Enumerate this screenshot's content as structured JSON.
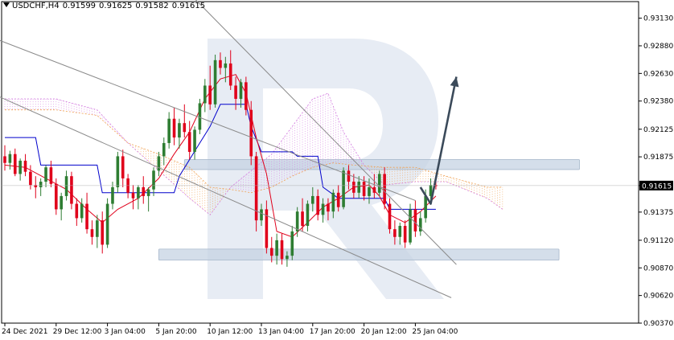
{
  "header": {
    "symbol": "USDCHF,H4",
    "open": "0.91599",
    "high": "0.91625",
    "low": "0.91582",
    "close": "0.91615"
  },
  "colors": {
    "bull": "#2e7d32",
    "bear": "#e0001b",
    "tenkan": "#e0001b",
    "kijun": "#0000cc",
    "kumo_up": "#d47fe0",
    "kumo_down": "#f0a050",
    "channel": "#8a8a8a",
    "zone": "#c5d3e3",
    "arrow": "#3b4a5a",
    "watermark": "#e3e9f2",
    "price_tag": "#000000"
  },
  "chart_data": {
    "type": "candlestick",
    "title": "USDCHF,H4",
    "ylim": [
      0.9037,
      0.9328
    ],
    "y_ticks": [
      "0.93130",
      "0.92880",
      "0.92630",
      "0.92380",
      "0.92125",
      "0.91875",
      "0.91615",
      "0.91375",
      "0.91120",
      "0.90870",
      "0.90620",
      "0.90370"
    ],
    "current_price": "0.91615",
    "x_ticks": [
      {
        "i": 0,
        "label": "24 Dec 2021"
      },
      {
        "i": 10,
        "label": "29 Dec 12:00"
      },
      {
        "i": 20,
        "label": "3 Jan 04:00"
      },
      {
        "i": 30,
        "label": "5 Jan 20:00"
      },
      {
        "i": 40,
        "label": "10 Jan 12:00"
      },
      {
        "i": 50,
        "label": "13 Jan 04:00"
      },
      {
        "i": 60,
        "label": "17 Jan 20:00"
      },
      {
        "i": 70,
        "label": "20 Jan 12:00"
      },
      {
        "i": 80,
        "label": "25 Jan 04:00"
      }
    ],
    "candles": [
      [
        0.9188,
        0.9198,
        0.9175,
        0.9182
      ],
      [
        0.9182,
        0.9193,
        0.9176,
        0.919
      ],
      [
        0.919,
        0.9195,
        0.917,
        0.9172
      ],
      [
        0.9172,
        0.9186,
        0.9166,
        0.9184
      ],
      [
        0.9184,
        0.919,
        0.917,
        0.9174
      ],
      [
        0.9174,
        0.918,
        0.9158,
        0.9162
      ],
      [
        0.9162,
        0.917,
        0.915,
        0.916
      ],
      [
        0.916,
        0.9168,
        0.9152,
        0.9165
      ],
      [
        0.9165,
        0.918,
        0.916,
        0.9178
      ],
      [
        0.9178,
        0.9184,
        0.916,
        0.9163
      ],
      [
        0.9163,
        0.9168,
        0.9135,
        0.914
      ],
      [
        0.914,
        0.9155,
        0.913,
        0.9152
      ],
      [
        0.9152,
        0.9175,
        0.9148,
        0.917
      ],
      [
        0.917,
        0.9174,
        0.914,
        0.9145
      ],
      [
        0.9145,
        0.915,
        0.9125,
        0.9132
      ],
      [
        0.9132,
        0.915,
        0.9128,
        0.9145
      ],
      [
        0.9145,
        0.9155,
        0.9118,
        0.9122
      ],
      [
        0.9122,
        0.913,
        0.9108,
        0.9115
      ],
      [
        0.9115,
        0.9135,
        0.9105,
        0.913
      ],
      [
        0.913,
        0.9138,
        0.91,
        0.9108
      ],
      [
        0.9108,
        0.915,
        0.9105,
        0.9145
      ],
      [
        0.9145,
        0.9165,
        0.914,
        0.916
      ],
      [
        0.916,
        0.9192,
        0.9155,
        0.9188
      ],
      [
        0.9188,
        0.9194,
        0.916,
        0.9168
      ],
      [
        0.9168,
        0.9172,
        0.915,
        0.9155
      ],
      [
        0.9155,
        0.9162,
        0.914,
        0.915
      ],
      [
        0.915,
        0.9162,
        0.914,
        0.916
      ],
      [
        0.916,
        0.917,
        0.9145,
        0.9152
      ],
      [
        0.9152,
        0.916,
        0.9138,
        0.9158
      ],
      [
        0.9158,
        0.9178,
        0.9152,
        0.9175
      ],
      [
        0.9175,
        0.9192,
        0.917,
        0.9188
      ],
      [
        0.9188,
        0.9205,
        0.918,
        0.92
      ],
      [
        0.92,
        0.9228,
        0.9195,
        0.9222
      ],
      [
        0.9222,
        0.9232,
        0.9198,
        0.9205
      ],
      [
        0.9205,
        0.9222,
        0.9195,
        0.9218
      ],
      [
        0.9218,
        0.9235,
        0.9205,
        0.921
      ],
      [
        0.921,
        0.922,
        0.9185,
        0.9192
      ],
      [
        0.9192,
        0.9215,
        0.9185,
        0.9212
      ],
      [
        0.9212,
        0.924,
        0.9208,
        0.9236
      ],
      [
        0.9236,
        0.9258,
        0.9228,
        0.9252
      ],
      [
        0.9252,
        0.927,
        0.923,
        0.9235
      ],
      [
        0.9235,
        0.928,
        0.9232,
        0.9275
      ],
      [
        0.9275,
        0.9282,
        0.9262,
        0.9268
      ],
      [
        0.9268,
        0.9278,
        0.9255,
        0.9272
      ],
      [
        0.9272,
        0.9284,
        0.9248,
        0.9252
      ],
      [
        0.9252,
        0.926,
        0.923,
        0.924
      ],
      [
        0.924,
        0.9258,
        0.9232,
        0.9255
      ],
      [
        0.9255,
        0.926,
        0.9225,
        0.923
      ],
      [
        0.923,
        0.9238,
        0.918,
        0.9188
      ],
      [
        0.9188,
        0.9192,
        0.912,
        0.913
      ],
      [
        0.913,
        0.9145,
        0.9125,
        0.914
      ],
      [
        0.914,
        0.9148,
        0.91,
        0.9105
      ],
      [
        0.9105,
        0.9115,
        0.9092,
        0.9098
      ],
      [
        0.9098,
        0.9118,
        0.909,
        0.9112
      ],
      [
        0.9112,
        0.9118,
        0.909,
        0.9095
      ],
      [
        0.9095,
        0.9102,
        0.9088,
        0.9098
      ],
      [
        0.9098,
        0.9125,
        0.9094,
        0.912
      ],
      [
        0.912,
        0.9142,
        0.9115,
        0.9138
      ],
      [
        0.9138,
        0.915,
        0.912,
        0.9125
      ],
      [
        0.9125,
        0.9148,
        0.912,
        0.9145
      ],
      [
        0.9145,
        0.916,
        0.9138,
        0.9152
      ],
      [
        0.9152,
        0.9158,
        0.913,
        0.9135
      ],
      [
        0.9135,
        0.915,
        0.9128,
        0.9145
      ],
      [
        0.9145,
        0.915,
        0.913,
        0.9138
      ],
      [
        0.9138,
        0.9158,
        0.9132,
        0.9155
      ],
      [
        0.9155,
        0.9162,
        0.9138,
        0.9142
      ],
      [
        0.9142,
        0.9178,
        0.914,
        0.9175
      ],
      [
        0.9175,
        0.918,
        0.9158,
        0.9165
      ],
      [
        0.9165,
        0.9172,
        0.915,
        0.9155
      ],
      [
        0.9155,
        0.917,
        0.915,
        0.9165
      ],
      [
        0.9165,
        0.917,
        0.9148,
        0.9152
      ],
      [
        0.9152,
        0.9168,
        0.9145,
        0.916
      ],
      [
        0.916,
        0.9172,
        0.915,
        0.9155
      ],
      [
        0.9155,
        0.9175,
        0.9152,
        0.9172
      ],
      [
        0.9172,
        0.9178,
        0.914,
        0.9145
      ],
      [
        0.9145,
        0.915,
        0.9118,
        0.9122
      ],
      [
        0.9122,
        0.913,
        0.9108,
        0.9115
      ],
      [
        0.9115,
        0.9128,
        0.9108,
        0.9125
      ],
      [
        0.9125,
        0.913,
        0.9105,
        0.911
      ],
      [
        0.911,
        0.9145,
        0.9108,
        0.914
      ],
      [
        0.914,
        0.9148,
        0.9115,
        0.912
      ],
      [
        0.912,
        0.9138,
        0.9116,
        0.9132
      ],
      [
        0.9132,
        0.9158,
        0.9128,
        0.9152
      ],
      [
        0.9152,
        0.9168,
        0.9148,
        0.9162
      ],
      [
        0.9162,
        0.9165,
        0.9158,
        0.9161
      ]
    ],
    "tenkan": [
      [
        0,
        0.918
      ],
      [
        4,
        0.9178
      ],
      [
        8,
        0.9168
      ],
      [
        12,
        0.9158
      ],
      [
        16,
        0.914
      ],
      [
        19,
        0.9128
      ],
      [
        22,
        0.914
      ],
      [
        26,
        0.915
      ],
      [
        30,
        0.9168
      ],
      [
        33,
        0.919
      ],
      [
        36,
        0.921
      ],
      [
        39,
        0.924
      ],
      [
        42,
        0.9258
      ],
      [
        45,
        0.9262
      ],
      [
        47,
        0.9245
      ],
      [
        49,
        0.9205
      ],
      [
        51,
        0.9172
      ],
      [
        53,
        0.912
      ],
      [
        56,
        0.9115
      ],
      [
        59,
        0.9128
      ],
      [
        62,
        0.9142
      ],
      [
        65,
        0.915
      ],
      [
        68,
        0.916
      ],
      [
        71,
        0.9162
      ],
      [
        73,
        0.9152
      ],
      [
        75,
        0.9135
      ],
      [
        78,
        0.9128
      ],
      [
        81,
        0.9138
      ],
      [
        84,
        0.9152
      ]
    ],
    "kijun": [
      [
        0,
        0.9205
      ],
      [
        6,
        0.9205
      ],
      [
        7,
        0.918
      ],
      [
        18,
        0.918
      ],
      [
        19,
        0.9155
      ],
      [
        33,
        0.9155
      ],
      [
        34,
        0.917
      ],
      [
        38,
        0.92
      ],
      [
        40,
        0.9215
      ],
      [
        42,
        0.9235
      ],
      [
        47,
        0.9235
      ],
      [
        48,
        0.9215
      ],
      [
        50,
        0.9192
      ],
      [
        56,
        0.9192
      ],
      [
        57,
        0.9188
      ],
      [
        61,
        0.9188
      ],
      [
        62,
        0.916
      ],
      [
        65,
        0.915
      ],
      [
        70,
        0.915
      ],
      [
        71,
        0.915
      ],
      [
        74,
        0.915
      ],
      [
        75,
        0.914
      ],
      [
        84,
        0.914
      ]
    ],
    "span_a": [
      [
        0,
        0.924
      ],
      [
        10,
        0.924
      ],
      [
        18,
        0.923
      ],
      [
        24,
        0.92
      ],
      [
        30,
        0.9175
      ],
      [
        36,
        0.915
      ],
      [
        40,
        0.9135
      ],
      [
        44,
        0.916
      ],
      [
        48,
        0.9175
      ],
      [
        52,
        0.919
      ],
      [
        56,
        0.9215
      ],
      [
        60,
        0.924
      ],
      [
        63,
        0.9245
      ],
      [
        66,
        0.921
      ],
      [
        70,
        0.918
      ],
      [
        74,
        0.9162
      ],
      [
        80,
        0.9165
      ],
      [
        86,
        0.9165
      ],
      [
        94,
        0.915
      ],
      [
        97,
        0.914
      ]
    ],
    "span_b": [
      [
        0,
        0.923
      ],
      [
        10,
        0.923
      ],
      [
        18,
        0.9225
      ],
      [
        24,
        0.92
      ],
      [
        30,
        0.919
      ],
      [
        36,
        0.9178
      ],
      [
        40,
        0.916
      ],
      [
        44,
        0.9158
      ],
      [
        48,
        0.9155
      ],
      [
        52,
        0.916
      ],
      [
        56,
        0.917
      ],
      [
        60,
        0.9178
      ],
      [
        64,
        0.9182
      ],
      [
        68,
        0.918
      ],
      [
        74,
        0.9178
      ],
      [
        80,
        0.9178
      ],
      [
        86,
        0.917
      ],
      [
        94,
        0.916
      ],
      [
        97,
        0.916
      ]
    ]
  },
  "annotations": {
    "channel_upper": [
      [
        -5,
        0.93
      ],
      [
        80,
        0.9148
      ]
    ],
    "channel_lower": [
      [
        -5,
        0.925
      ],
      [
        87,
        0.906
      ]
    ],
    "upper_trendline": [
      [
        35,
        0.934
      ],
      [
        88,
        0.909
      ]
    ],
    "resistance_zone": [
      35,
      112,
      0.9185,
      0.9176
    ],
    "support_zone": [
      30,
      108,
      0.9104,
      0.9094
    ],
    "forecast_arrow": [
      [
        81,
        0.916
      ],
      [
        83,
        0.9145
      ],
      [
        88,
        0.926
      ]
    ]
  }
}
